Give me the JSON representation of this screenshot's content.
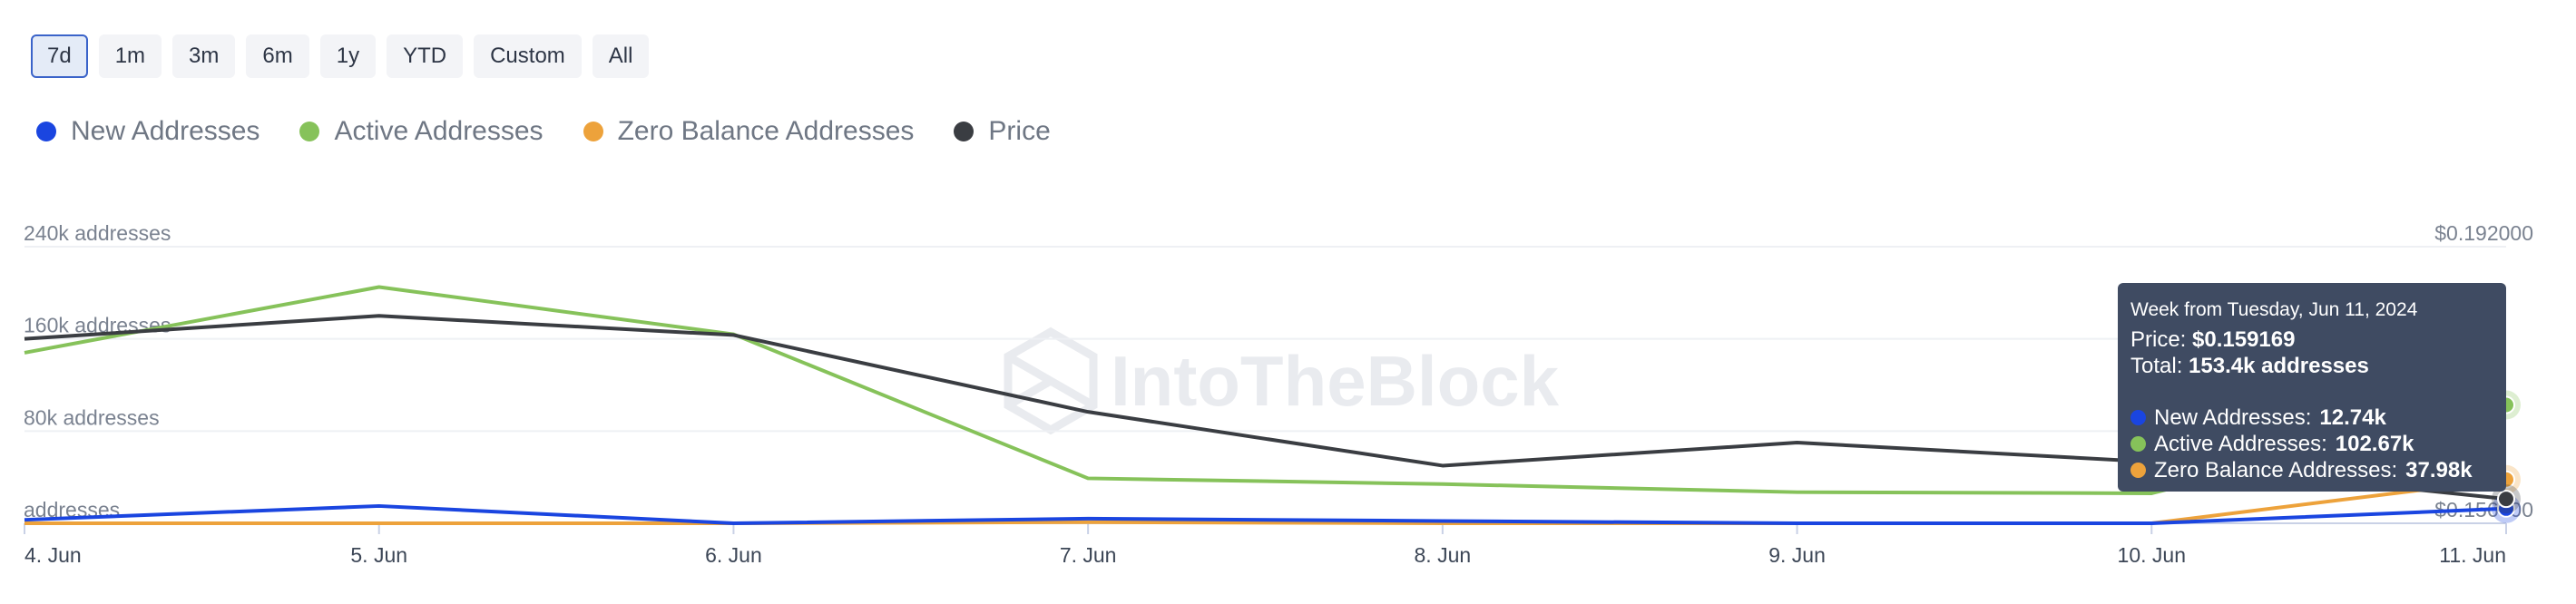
{
  "range_buttons": [
    "7d",
    "1m",
    "3m",
    "6m",
    "1y",
    "YTD",
    "Custom",
    "All"
  ],
  "active_range": "7d",
  "legend": [
    {
      "label": "New Addresses",
      "color": "#1a45e0"
    },
    {
      "label": "Active Addresses",
      "color": "#86c25a"
    },
    {
      "label": "Zero Balance Addresses",
      "color": "#eda23b"
    },
    {
      "label": "Price",
      "color": "#3a3d42"
    }
  ],
  "watermark": "IntoTheBlock",
  "chart_data": {
    "type": "line",
    "x": [
      "4. Jun",
      "5. Jun",
      "6. Jun",
      "7. Jun",
      "8. Jun",
      "9. Jun",
      "10. Jun",
      "11. Jun"
    ],
    "y_left": {
      "ticks": [
        "addresses",
        "80k addresses",
        "160k addresses",
        "240k addresses"
      ],
      "tick_values": [
        0,
        80000,
        160000,
        240000
      ],
      "ylim": [
        0,
        240000
      ]
    },
    "y_right": {
      "ticks": [
        "$0.156000",
        "$0.192000"
      ],
      "tick_values": [
        0.156,
        0.192
      ],
      "ylim": [
        0.156,
        0.192
      ]
    },
    "grid": true,
    "series": [
      {
        "name": "New Addresses",
        "axis": "left",
        "color": "#1a45e0",
        "values": [
          3000,
          15000,
          0,
          4000,
          2000,
          0,
          0,
          12740
        ]
      },
      {
        "name": "Active Addresses",
        "axis": "left",
        "color": "#86c25a",
        "values": [
          148000,
          205000,
          164000,
          39000,
          34000,
          27000,
          26000,
          102670
        ]
      },
      {
        "name": "Zero Balance Addresses",
        "axis": "left",
        "color": "#eda23b",
        "values": [
          0,
          0,
          0,
          1000,
          0,
          0,
          0,
          37980
        ]
      },
      {
        "name": "Price",
        "axis": "right",
        "color": "#3a3d42",
        "values": [
          0.18,
          0.183,
          0.1805,
          0.1705,
          0.1635,
          0.1665,
          0.164,
          0.159169
        ]
      }
    ]
  },
  "tooltip": {
    "title": "Week from Tuesday, Jun 11, 2024",
    "price_label": "Price: ",
    "price_value": "$0.159169",
    "total_label": "Total: ",
    "total_value": "153.4k addresses",
    "rows": [
      {
        "label": "New Addresses: ",
        "value": "12.74k",
        "color": "#1a45e0"
      },
      {
        "label": "Active Addresses: ",
        "value": "102.67k",
        "color": "#86c25a"
      },
      {
        "label": "Zero Balance Addresses: ",
        "value": "37.98k",
        "color": "#eda23b"
      }
    ]
  }
}
